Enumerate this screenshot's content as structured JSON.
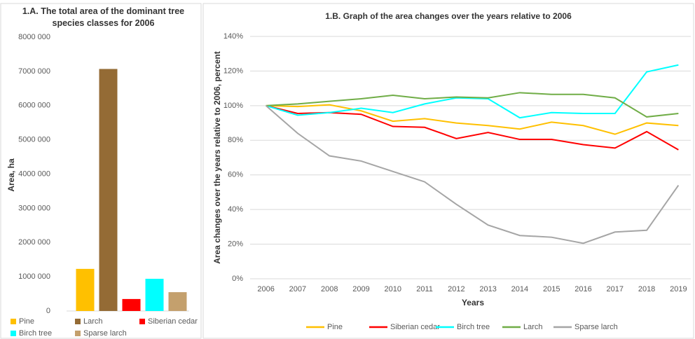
{
  "chart_data": [
    {
      "type": "bar",
      "title": "1.A. The total area of the dominant tree species classes for 2006",
      "y_label": "Area, ha",
      "categories": [
        "Pine",
        "Larch",
        "Siberian cedar",
        "Birch tree",
        "Sparse larch"
      ],
      "values": [
        1230000,
        7070000,
        350000,
        940000,
        550000
      ],
      "colors": [
        "#ffc000",
        "#946b35",
        "#ff0000",
        "#00ffff",
        "#c4a06d"
      ],
      "ylim": [
        0,
        8000000
      ],
      "yticks": [
        0,
        {
          "value": 1000000,
          "label": "1000 000"
        },
        {
          "value": 2000000,
          "label": "2000 000"
        },
        {
          "value": 3000000,
          "label": "3000 000"
        },
        {
          "value": 4000000,
          "label": "4000 000"
        },
        {
          "value": 5000000,
          "label": "5000 000"
        },
        {
          "value": 6000000,
          "label": "6000 000"
        },
        {
          "value": 7000000,
          "label": "7000 000"
        },
        {
          "value": 8000000,
          "label": "8000 000"
        }
      ],
      "grid": false,
      "legend": "bottom"
    },
    {
      "type": "line",
      "title": "1.B. Graph of the area changes over the years relative to 2006",
      "x_label": "Years",
      "y_label": "Area changes over the years relative to 2006, percent",
      "x": [
        2006,
        2007,
        2008,
        2009,
        2010,
        2011,
        2012,
        2013,
        2014,
        2015,
        2016,
        2017,
        2018,
        2019
      ],
      "series": [
        {
          "name": "Pine",
          "color": "#ffc000",
          "values": [
            100,
            99.5,
            100.5,
            97,
            91,
            92.5,
            90,
            88.5,
            86.5,
            90.5,
            88.5,
            83.5,
            90,
            88.5
          ]
        },
        {
          "name": "Siberian cedar",
          "color": "#ff0000",
          "values": [
            100,
            95.5,
            96,
            95,
            88,
            87.5,
            81,
            84.5,
            80.5,
            80.5,
            77.5,
            75.5,
            85,
            74.5
          ]
        },
        {
          "name": "Birch tree",
          "color": "#00ffff",
          "values": [
            100,
            94.5,
            96,
            98.5,
            96,
            101,
            104.5,
            104,
            93,
            96,
            95.5,
            95.5,
            119.5,
            123.5
          ]
        },
        {
          "name": "Larch",
          "color": "#70ad47",
          "values": [
            100,
            101,
            102.5,
            104,
            106,
            104,
            105,
            104.5,
            107.5,
            106.5,
            106.5,
            104.5,
            93.5,
            95.5
          ]
        },
        {
          "name": "Sparse larch",
          "color": "#a5a5a5",
          "values": [
            100,
            84,
            71,
            68,
            62,
            56,
            43,
            31,
            25,
            24,
            20.5,
            27,
            28,
            54
          ]
        }
      ],
      "ylim": [
        0,
        140
      ],
      "yticks": [
        {
          "value": 0,
          "label": "0%"
        },
        {
          "value": 20,
          "label": "20%"
        },
        {
          "value": 40,
          "label": "40%"
        },
        {
          "value": 60,
          "label": "60%"
        },
        {
          "value": 80,
          "label": "80%"
        },
        {
          "value": 100,
          "label": "100%"
        },
        {
          "value": 120,
          "label": "120%"
        },
        {
          "value": 140,
          "label": "140%"
        }
      ],
      "grid": true,
      "legend": "bottom"
    }
  ]
}
